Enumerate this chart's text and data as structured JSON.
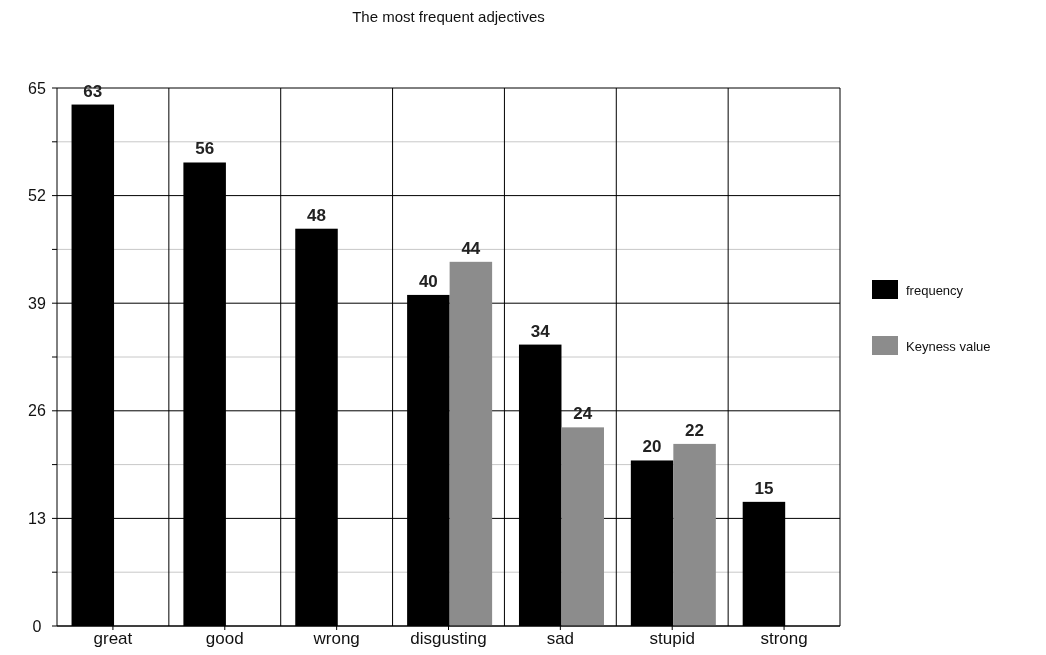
{
  "chart_data": {
    "type": "bar",
    "title": "The most frequent adjectives",
    "categories": [
      "great",
      "good",
      "wrong",
      "disgusting",
      "sad",
      "stupid",
      "strong"
    ],
    "series": [
      {
        "name": "frequency",
        "color": "#000000",
        "values": [
          63,
          56,
          48,
          40,
          34,
          20,
          15
        ]
      },
      {
        "name": "Keyness value",
        "color": "#8c8c8c",
        "values": [
          null,
          null,
          null,
          44,
          24,
          22,
          null
        ]
      }
    ],
    "ylim": [
      0,
      65
    ],
    "yticks": [
      0,
      {
        "value": 6.5,
        "label": null
      },
      13,
      {
        "value": 19.5,
        "label": null
      },
      26,
      {
        "value": 32.5,
        "label": null
      },
      39,
      {
        "value": 45.5,
        "label": null
      },
      52,
      {
        "value": 58.5,
        "label": null
      },
      65
    ],
    "grid": true,
    "legend": "right",
    "data_labels": true
  }
}
